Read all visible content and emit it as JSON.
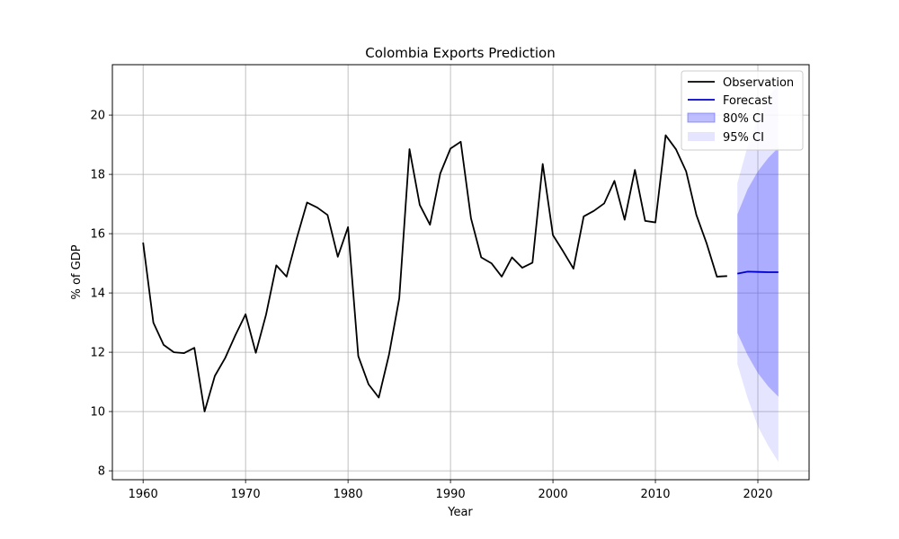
{
  "chart_data": {
    "type": "line",
    "title": "Colombia Exports Prediction",
    "xlabel": "Year",
    "ylabel": "% of GDP",
    "xlim": [
      1957,
      2025
    ],
    "ylim": [
      7.7,
      21.7
    ],
    "xticks": [
      1960,
      1970,
      1980,
      1990,
      2000,
      2010,
      2020
    ],
    "yticks": [
      8,
      10,
      12,
      14,
      16,
      18,
      20
    ],
    "grid": true,
    "legend_position": "top-right",
    "legend": [
      "Observation",
      "Forecast",
      "80% CI",
      "95% CI"
    ],
    "series": [
      {
        "name": "Observation",
        "color": "#000000",
        "x": [
          1960,
          1961,
          1962,
          1963,
          1964,
          1965,
          1966,
          1967,
          1968,
          1969,
          1970,
          1971,
          1972,
          1973,
          1974,
          1975,
          1976,
          1977,
          1978,
          1979,
          1980,
          1981,
          1982,
          1983,
          1984,
          1985,
          1986,
          1987,
          1988,
          1989,
          1990,
          1991,
          1992,
          1993,
          1994,
          1995,
          1996,
          1997,
          1998,
          1999,
          2000,
          2001,
          2002,
          2003,
          2004,
          2005,
          2006,
          2007,
          2008,
          2009,
          2010,
          2011,
          2012,
          2013,
          2014,
          2015,
          2016,
          2017
        ],
        "y": [
          15.7,
          13.0,
          12.25,
          12.0,
          11.97,
          12.15,
          10.0,
          11.2,
          11.8,
          12.57,
          13.28,
          11.98,
          13.27,
          14.93,
          14.55,
          15.85,
          17.05,
          16.88,
          16.63,
          15.22,
          16.22,
          11.87,
          10.92,
          10.47,
          11.92,
          13.82,
          18.85,
          16.97,
          16.3,
          18.03,
          18.87,
          19.1,
          16.52,
          15.2,
          15.0,
          14.55,
          15.2,
          14.85,
          15.02,
          18.35,
          15.95,
          15.4,
          14.82,
          16.58,
          16.77,
          17.02,
          17.78,
          16.47,
          18.15,
          16.43,
          16.38,
          19.32,
          18.85,
          18.1,
          16.63,
          15.67,
          14.55,
          14.57
        ]
      },
      {
        "name": "Forecast",
        "color": "#0000cc",
        "x": [
          2018,
          2019,
          2020,
          2021,
          2022
        ],
        "y": [
          14.65,
          14.72,
          14.71,
          14.7,
          14.7
        ]
      }
    ],
    "intervals": [
      {
        "name": "80% CI",
        "color": "#4646ff",
        "opacity": 0.35,
        "x": [
          2018,
          2019,
          2020,
          2021,
          2022
        ],
        "lower": [
          12.65,
          11.9,
          11.3,
          10.85,
          10.5
        ],
        "upper": [
          16.65,
          17.5,
          18.1,
          18.55,
          18.9
        ]
      },
      {
        "name": "95% CI",
        "color": "#6e6eff",
        "opacity": 0.18,
        "x": [
          2018,
          2019,
          2020,
          2021,
          2022
        ],
        "lower": [
          11.6,
          10.45,
          9.5,
          8.85,
          8.3
        ],
        "upper": [
          17.7,
          18.95,
          19.9,
          20.55,
          21.1
        ]
      }
    ]
  }
}
